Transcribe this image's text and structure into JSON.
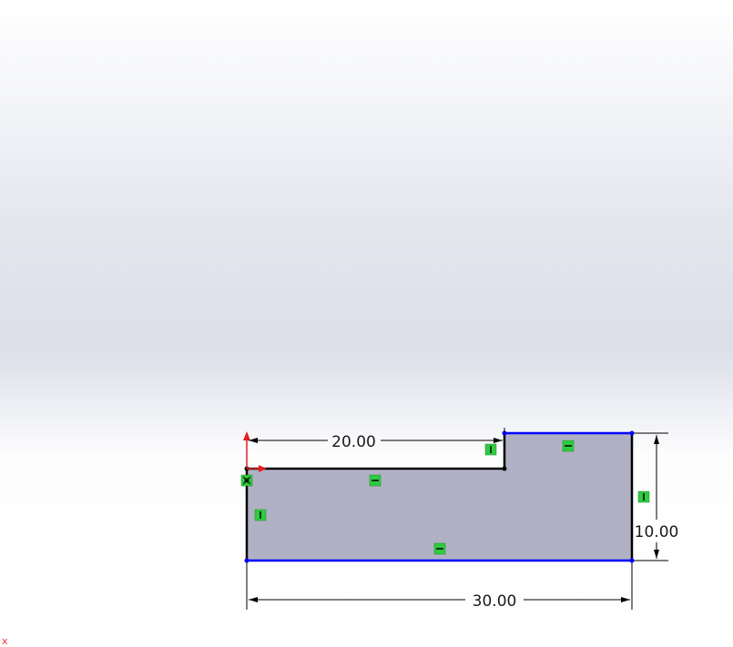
{
  "dimensions": {
    "top_length": "20.00",
    "height": "10.00",
    "bottom_length": "30.00"
  },
  "relations": {
    "horizontal_symbol": "—",
    "vertical_symbol": "|"
  },
  "corner_marker": "x",
  "colors": {
    "profile_fill": "#b0b1c4",
    "outline": "#000000",
    "selected_edge": "#0000ff",
    "relation_badge": "#2ecc40",
    "axis_red": "#e02020"
  }
}
